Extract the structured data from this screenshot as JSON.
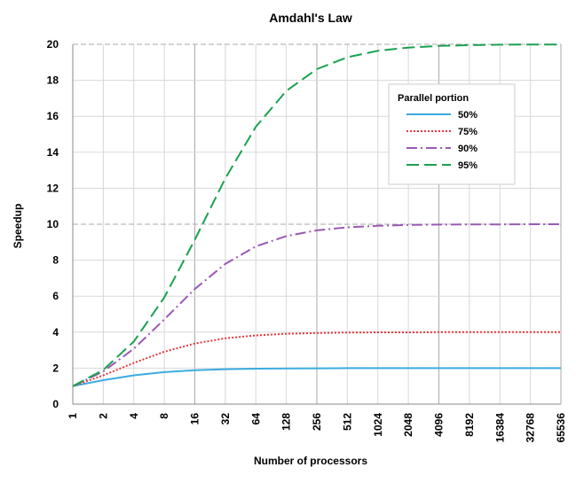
{
  "chart_data": {
    "type": "line",
    "title": "Amdahl's Law",
    "xlabel": "Number of processors",
    "ylabel": "Speedup",
    "x_scale": "log2",
    "categories": [
      "1",
      "2",
      "4",
      "8",
      "16",
      "32",
      "64",
      "128",
      "256",
      "512",
      "1024",
      "2048",
      "4096",
      "8192",
      "16384",
      "32768",
      "65536"
    ],
    "ylim": [
      0,
      20
    ],
    "y_ticks": [
      0,
      2,
      4,
      6,
      8,
      10,
      12,
      14,
      16,
      18,
      20
    ],
    "grid": true,
    "legend_position": "top-right",
    "legend_title": "Parallel portion",
    "series": [
      {
        "name": "50%",
        "color": "#3aace0",
        "dash": "solid",
        "values": [
          1.0,
          1.33,
          1.6,
          1.78,
          1.88,
          1.94,
          1.97,
          1.98,
          1.99,
          2.0,
          2.0,
          2.0,
          2.0,
          2.0,
          2.0,
          2.0,
          2.0
        ]
      },
      {
        "name": "75%",
        "color": "#e8373b",
        "dash": "dotted",
        "values": [
          1.0,
          1.6,
          2.29,
          2.91,
          3.37,
          3.66,
          3.82,
          3.91,
          3.95,
          3.98,
          3.99,
          3.99,
          4.0,
          4.0,
          4.0,
          4.0,
          4.0
        ]
      },
      {
        "name": "90%",
        "color": "#9b59b6",
        "dash": "dashdot",
        "values": [
          1.0,
          1.82,
          3.08,
          4.71,
          6.4,
          7.8,
          8.77,
          9.34,
          9.66,
          9.83,
          9.91,
          9.96,
          9.98,
          9.99,
          9.99,
          10.0,
          10.0
        ]
      },
      {
        "name": "95%",
        "color": "#1aa150",
        "dash": "dashed",
        "values": [
          1.0,
          1.9,
          3.48,
          5.93,
          9.14,
          12.55,
          15.42,
          17.41,
          18.62,
          19.28,
          19.64,
          19.82,
          19.91,
          19.95,
          19.98,
          19.99,
          19.99
        ]
      }
    ]
  }
}
